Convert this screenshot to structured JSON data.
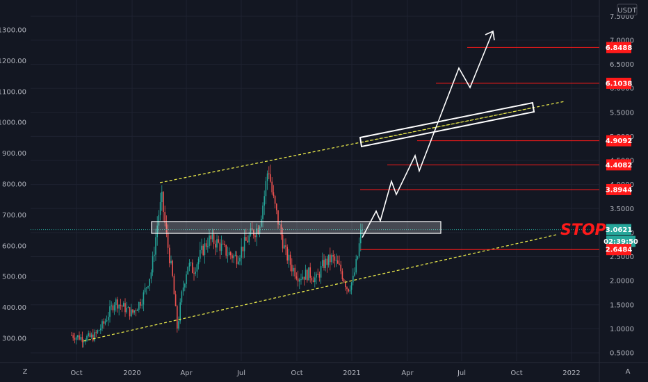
{
  "chart_data": {
    "type": "candlestick",
    "title": "",
    "currency_label": "USDT",
    "x_ticks": [
      "Oct",
      "2020",
      "Apr",
      "Jul",
      "Oct",
      "2021",
      "Apr",
      "Jul",
      "Oct",
      "2022"
    ],
    "left_axis": {
      "ticks": [
        "300.00",
        "400.00",
        "500.00",
        "600.00",
        "700.00",
        "800.00",
        "900.00",
        "1000.00",
        "1100.00",
        "1200.00",
        "1300.00"
      ],
      "ylim": [
        250,
        1375
      ]
    },
    "right_axis": {
      "ticks": [
        "0.5000",
        "1.0000",
        "1.5000",
        "2.0000",
        "2.5000",
        "3.0000",
        "3.5000",
        "4.0000",
        "4.5000",
        "5.0000",
        "5.5000",
        "6.0000",
        "6.5000",
        "7.0000",
        "7.5000"
      ],
      "ylim": [
        0.3,
        7.6
      ]
    },
    "price_tags": [
      {
        "label": "6.8488",
        "kind": "target"
      },
      {
        "label": "6.1038",
        "kind": "target"
      },
      {
        "label": "4.9092",
        "kind": "target"
      },
      {
        "label": "4.4082",
        "kind": "target"
      },
      {
        "label": "3.8944",
        "kind": "target"
      },
      {
        "label": "3.0621",
        "kind": "current"
      },
      {
        "label": "02:39:50",
        "kind": "countdown"
      },
      {
        "label": "2.6484",
        "kind": "stop"
      }
    ],
    "annotations": {
      "stop_text": "STOP"
    },
    "corner_labels": {
      "left": "Z",
      "right": "A"
    },
    "colors": {
      "background": "#131722",
      "grid": "#1e2230",
      "up": "#26a69a",
      "down": "#ef5350",
      "target_line": "#ff1a1a",
      "current_tag": "#26a69a",
      "channel": "#e8e84a",
      "projection": "#ffffff"
    }
  }
}
